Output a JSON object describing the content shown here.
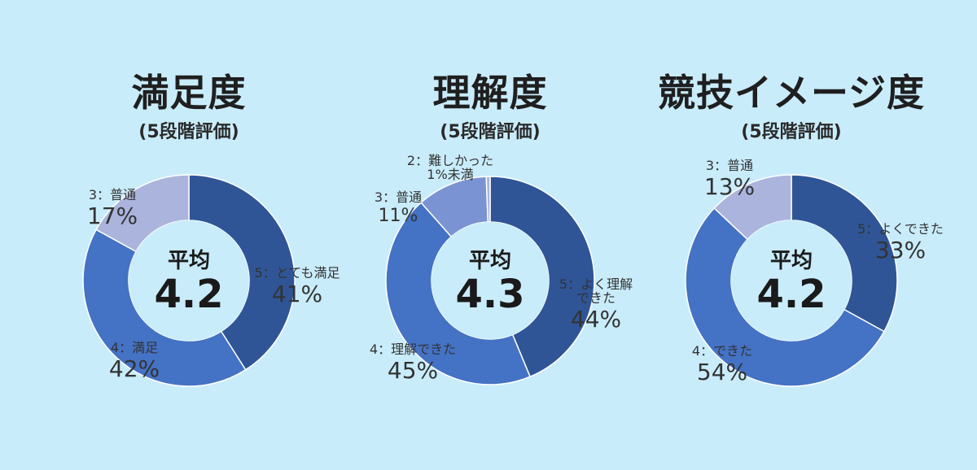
{
  "colors": {
    "background": "#c9ecfb",
    "hole": "#c9ecfb"
  },
  "chart_data": [
    {
      "type": "pie",
      "title": "満足度",
      "subtitle": "(5段階評価)",
      "center": {
        "label": "平均",
        "value": "4.2"
      },
      "slices": [
        {
          "name": "5：とても満足",
          "value": 41,
          "label": "41%",
          "color": "#2f5597"
        },
        {
          "name": "4：満足",
          "value": 42,
          "label": "42%",
          "color": "#4472c4"
        },
        {
          "name": "3：普通",
          "value": 17,
          "label": "17%",
          "color": "#aab4dc"
        }
      ]
    },
    {
      "type": "pie",
      "title": "理解度",
      "subtitle": "(5段階評価)",
      "center": {
        "label": "平均",
        "value": "4.3"
      },
      "slices": [
        {
          "name": "5：よく理解できた",
          "value": 44,
          "label": "44%",
          "color": "#2f5597"
        },
        {
          "name": "4：理解できた",
          "value": 45,
          "label": "45%",
          "color": "#4472c4"
        },
        {
          "name": "3：普通",
          "value": 11,
          "label": "11%",
          "color": "#7a93d3"
        },
        {
          "name": "2：難しかった",
          "value": 0.6,
          "label": "1%未満",
          "color": "#aab4dc"
        }
      ]
    },
    {
      "type": "pie",
      "title": "競技イメージ度",
      "subtitle": "(5段階評価)",
      "center": {
        "label": "平均",
        "value": "4.2"
      },
      "slices": [
        {
          "name": "5：よくできた",
          "value": 33,
          "label": "33%",
          "color": "#2f5597"
        },
        {
          "name": "4：できた",
          "value": 54,
          "label": "54%",
          "color": "#4472c4"
        },
        {
          "name": "3：普通",
          "value": 13,
          "label": "13%",
          "color": "#aab4dc"
        }
      ]
    }
  ]
}
